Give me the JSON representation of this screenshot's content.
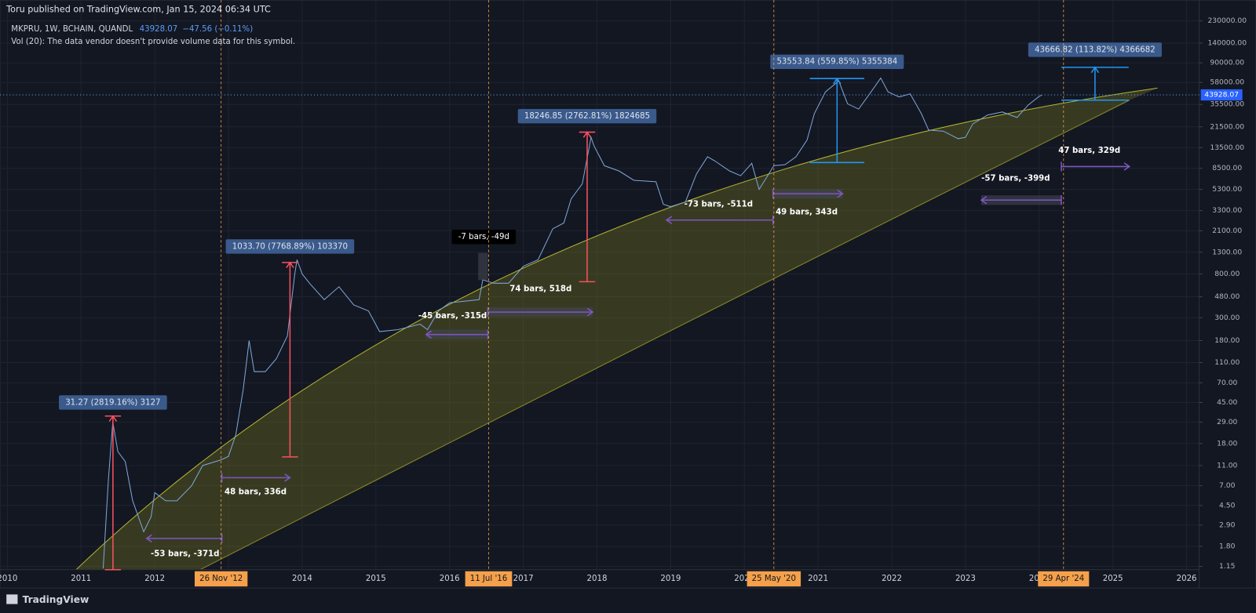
{
  "chart_data": {
    "type": "line",
    "publisher": "Toru published on TradingView.com, Jan 15, 2024 06:34 UTC",
    "symbol": "MKPRU, 1W, BCHAIN, QUANDL",
    "change": "−47.56 (−0.11%)",
    "volume_note": "Vol (20): The data vendor doesn't provide volume data for this symbol.",
    "brand": "TradingView",
    "last_price": 43928.07,
    "log_scale": true,
    "grid": true,
    "xlim": [
      2009.9,
      2026.17
    ],
    "xticks": [
      2010,
      2011,
      2012,
      2013,
      2014,
      2015,
      2016,
      2017,
      2018,
      2019,
      2020,
      2021,
      2022,
      2023,
      2024,
      2025,
      2026
    ],
    "ylim": [
      1.07,
      306000
    ],
    "yticks": [
      {
        "value": 230000,
        "label": "230000.00"
      },
      {
        "value": 140000,
        "label": "140000.00"
      },
      {
        "value": 90000,
        "label": "90000.00"
      },
      {
        "value": 58000,
        "label": "58000.00"
      },
      {
        "value": 35500,
        "label": "35500.00"
      },
      {
        "value": 21500,
        "label": "21500.00"
      },
      {
        "value": 13500,
        "label": "13500.00"
      },
      {
        "value": 8500,
        "label": "8500.00"
      },
      {
        "value": 5300,
        "label": "5300.00"
      },
      {
        "value": 3300,
        "label": "3300.00"
      },
      {
        "value": 2100,
        "label": "2100.00"
      },
      {
        "value": 1300,
        "label": "1300.00"
      },
      {
        "value": 800,
        "label": "800.00"
      },
      {
        "value": 480,
        "label": "480.00"
      },
      {
        "value": 300,
        "label": "300.00"
      },
      {
        "value": 180,
        "label": "180.00"
      },
      {
        "value": 110,
        "label": "110.00"
      },
      {
        "value": 70,
        "label": "70.00"
      },
      {
        "value": 45,
        "label": "45.00"
      },
      {
        "value": 29,
        "label": "29.00"
      },
      {
        "value": 18,
        "label": "18.00"
      },
      {
        "value": 11,
        "label": "11.00"
      },
      {
        "value": 7,
        "label": "7.00"
      },
      {
        "value": 4.5,
        "label": "4.50"
      },
      {
        "value": 2.9,
        "label": "2.90"
      },
      {
        "value": 1.8,
        "label": "1.80"
      },
      {
        "value": 1.15,
        "label": "1.15"
      }
    ],
    "date_markers": [
      {
        "x": 2012.9,
        "label": "26 Nov '12"
      },
      {
        "x": 2016.53,
        "label": "11 Jul '16"
      },
      {
        "x": 2020.4,
        "label": "25 May '20"
      },
      {
        "x": 2024.33,
        "label": "29 Apr '24"
      }
    ],
    "series": [
      {
        "name": "MKPRU",
        "color": "#7fa6d8",
        "x": [
          2011.3,
          2011.37,
          2011.43,
          2011.5,
          2011.6,
          2011.7,
          2011.85,
          2011.95,
          2012.0,
          2012.15,
          2012.3,
          2012.5,
          2012.65,
          2012.9,
          2013.0,
          2013.1,
          2013.2,
          2013.28,
          2013.35,
          2013.5,
          2013.65,
          2013.8,
          2013.9,
          2013.93,
          2014.0,
          2014.1,
          2014.3,
          2014.5,
          2014.7,
          2014.9,
          2015.05,
          2015.3,
          2015.6,
          2015.7,
          2015.85,
          2016.0,
          2016.4,
          2016.45,
          2016.6,
          2016.8,
          2017.0,
          2017.2,
          2017.4,
          2017.55,
          2017.65,
          2017.8,
          2017.92,
          2017.96,
          2018.1,
          2018.3,
          2018.5,
          2018.8,
          2018.9,
          2019.0,
          2019.2,
          2019.35,
          2019.5,
          2019.6,
          2019.8,
          2019.95,
          2020.1,
          2020.2,
          2020.4,
          2020.55,
          2020.7,
          2020.85,
          2020.95,
          2021.1,
          2021.28,
          2021.4,
          2021.55,
          2021.7,
          2021.85,
          2021.95,
          2022.1,
          2022.25,
          2022.4,
          2022.5,
          2022.7,
          2022.9,
          2023.0,
          2023.1,
          2023.3,
          2023.5,
          2023.7,
          2023.85,
          2024.0,
          2024.04
        ],
        "values": [
          1.1,
          8,
          29,
          15,
          12,
          5,
          2.5,
          3.5,
          6,
          5,
          5,
          7,
          11,
          12.5,
          13.5,
          22,
          60,
          180,
          90,
          90,
          120,
          200,
          800,
          1100,
          800,
          650,
          450,
          600,
          400,
          350,
          220,
          230,
          260,
          230,
          350,
          420,
          450,
          700,
          650,
          650,
          950,
          1100,
          2200,
          2500,
          4300,
          6000,
          17000,
          14000,
          9000,
          8000,
          6500,
          6300,
          3800,
          3600,
          4000,
          7500,
          11000,
          10000,
          8000,
          7200,
          9500,
          5300,
          9000,
          9200,
          11000,
          16000,
          29000,
          47000,
          60000,
          36000,
          32000,
          45000,
          64000,
          47000,
          42000,
          45000,
          29000,
          20000,
          19500,
          16500,
          17000,
          23000,
          28000,
          30000,
          26500,
          35000,
          42500,
          43928.07
        ]
      }
    ],
    "price_annotations": [
      "31.27 (2819.16%) 3127",
      "1033.70 (7768.89%) 103370",
      "18246.85 (2762.81%) 1824685",
      "53553.84 (559.85%) 5355384",
      "43666.82 (113.82%) 4366682"
    ],
    "time_annotations": [
      "-53 bars, -371d",
      "48 bars, 336d",
      "-45 bars, -315d",
      "-7 bars, -49d",
      "74 bars, 518d",
      "-73 bars, -511d",
      "49 bars, 343d",
      "-57 bars, -399d",
      "47 bars, 329d"
    ]
  }
}
